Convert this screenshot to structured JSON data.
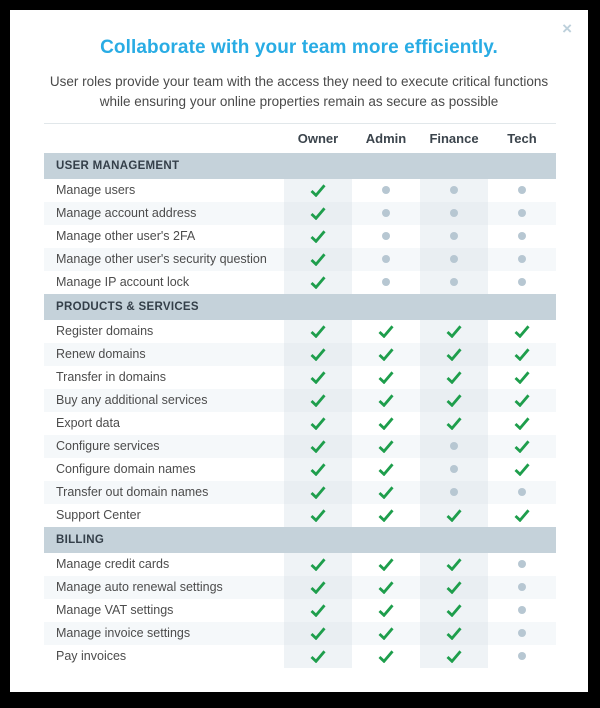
{
  "modal": {
    "title": "Collaborate with your team more efficiently.",
    "subtitle": "User roles provide your team with the access they need to execute critical functions while ensuring your online properties remain as secure as possible",
    "close_glyph": "×"
  },
  "table": {
    "columns": [
      "Owner",
      "Admin",
      "Finance",
      "Tech"
    ],
    "sections": [
      {
        "heading": "USER MANAGEMENT",
        "rows": [
          {
            "label": "Manage users",
            "access": [
              true,
              false,
              false,
              false
            ]
          },
          {
            "label": "Manage account address",
            "access": [
              true,
              false,
              false,
              false
            ]
          },
          {
            "label": "Manage other user's 2FA",
            "access": [
              true,
              false,
              false,
              false
            ]
          },
          {
            "label": "Manage other user's security question",
            "access": [
              true,
              false,
              false,
              false
            ]
          },
          {
            "label": "Manage IP account lock",
            "access": [
              true,
              false,
              false,
              false
            ]
          }
        ]
      },
      {
        "heading": "PRODUCTS & SERVICES",
        "rows": [
          {
            "label": "Register domains",
            "access": [
              true,
              true,
              true,
              true
            ]
          },
          {
            "label": "Renew domains",
            "access": [
              true,
              true,
              true,
              true
            ]
          },
          {
            "label": "Transfer in domains",
            "access": [
              true,
              true,
              true,
              true
            ]
          },
          {
            "label": "Buy any additional services",
            "access": [
              true,
              true,
              true,
              true
            ]
          },
          {
            "label": "Export data",
            "access": [
              true,
              true,
              true,
              true
            ]
          },
          {
            "label": "Configure services",
            "access": [
              true,
              true,
              false,
              true
            ]
          },
          {
            "label": "Configure domain names",
            "access": [
              true,
              true,
              false,
              true
            ]
          },
          {
            "label": "Transfer out domain names",
            "access": [
              true,
              true,
              false,
              false
            ]
          },
          {
            "label": "Support Center",
            "access": [
              true,
              true,
              true,
              true
            ]
          }
        ]
      },
      {
        "heading": "BILLING",
        "rows": [
          {
            "label": "Manage credit cards",
            "access": [
              true,
              true,
              true,
              false
            ]
          },
          {
            "label": "Manage auto renewal settings",
            "access": [
              true,
              true,
              true,
              false
            ]
          },
          {
            "label": "Manage VAT settings",
            "access": [
              true,
              true,
              true,
              false
            ]
          },
          {
            "label": "Manage invoice settings",
            "access": [
              true,
              true,
              true,
              false
            ]
          },
          {
            "label": "Pay invoices",
            "access": [
              true,
              true,
              true,
              false
            ]
          }
        ]
      }
    ]
  },
  "icons": {
    "granted": "check-icon",
    "denied": "dot-icon"
  },
  "colors": {
    "accent_title": "#29ace4",
    "check_green": "#1e9e4c",
    "dot_gray": "#b7c7d2",
    "section_bar_bg": "#c5d2da",
    "close_gray": "#bdd0db"
  }
}
